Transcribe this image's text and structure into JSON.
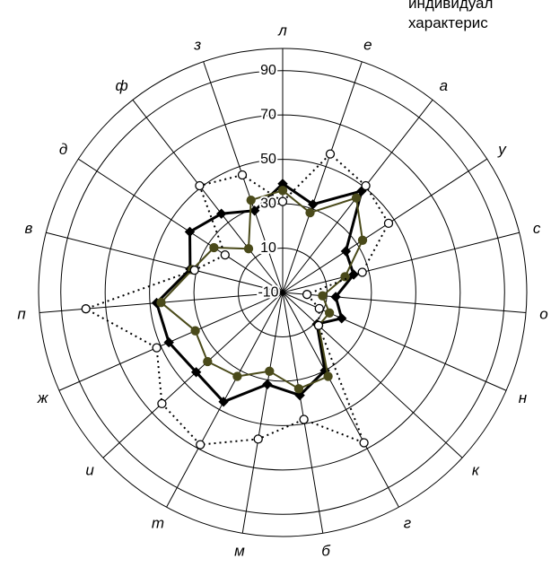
{
  "corner_text": [
    "индивидуал",
    "характерис"
  ],
  "chart_data": {
    "type": "radar",
    "title": "",
    "axes": [
      "л",
      "е",
      "а",
      "у",
      "с",
      "о",
      "н",
      "к",
      "г",
      "б",
      "м",
      "т",
      "и",
      "ж",
      "п",
      "в",
      "д",
      "ф",
      "з"
    ],
    "rlim": [
      -10,
      100
    ],
    "rticks": [
      -10,
      10,
      30,
      50,
      70,
      90
    ],
    "rtick_labels": [
      "-10",
      "10",
      "30",
      "50",
      "70",
      "90"
    ],
    "ring_values": [
      -10,
      10,
      30,
      50,
      70,
      90,
      100
    ],
    "grid": true,
    "legend": "none",
    "series": [
      {
        "color": "#000000",
        "line_style": "solid",
        "line_width": 3,
        "marker": "diamond",
        "marker_fill": "#000000",
        "values": [
          39,
          32,
          48,
          24,
          23,
          14,
          19,
          11,
          30,
          37,
          32,
          46,
          43,
          46,
          47,
          33,
          40,
          35,
          29
        ]
      },
      {
        "color": "#4a4a1a",
        "line_style": "solid",
        "line_width": 2,
        "marker": "circle",
        "marker_fill": "#4a4a1a",
        "values": [
          36,
          28,
          44,
          33,
          19,
          8,
          13,
          12,
          33,
          34,
          26,
          33,
          36,
          33,
          45,
          32,
          27,
          15,
          34
        ]
      },
      {
        "color": "#000000",
        "line_style": "dotted",
        "line_width": 2,
        "marker": "circle",
        "marker_fill": "#ffffff",
        "values": [
          31,
          56,
          51,
          47,
          27,
          1,
          8,
          12,
          67,
          48,
          57,
          68,
          64,
          52,
          79,
          31,
          21,
          51,
          46
        ]
      }
    ]
  }
}
